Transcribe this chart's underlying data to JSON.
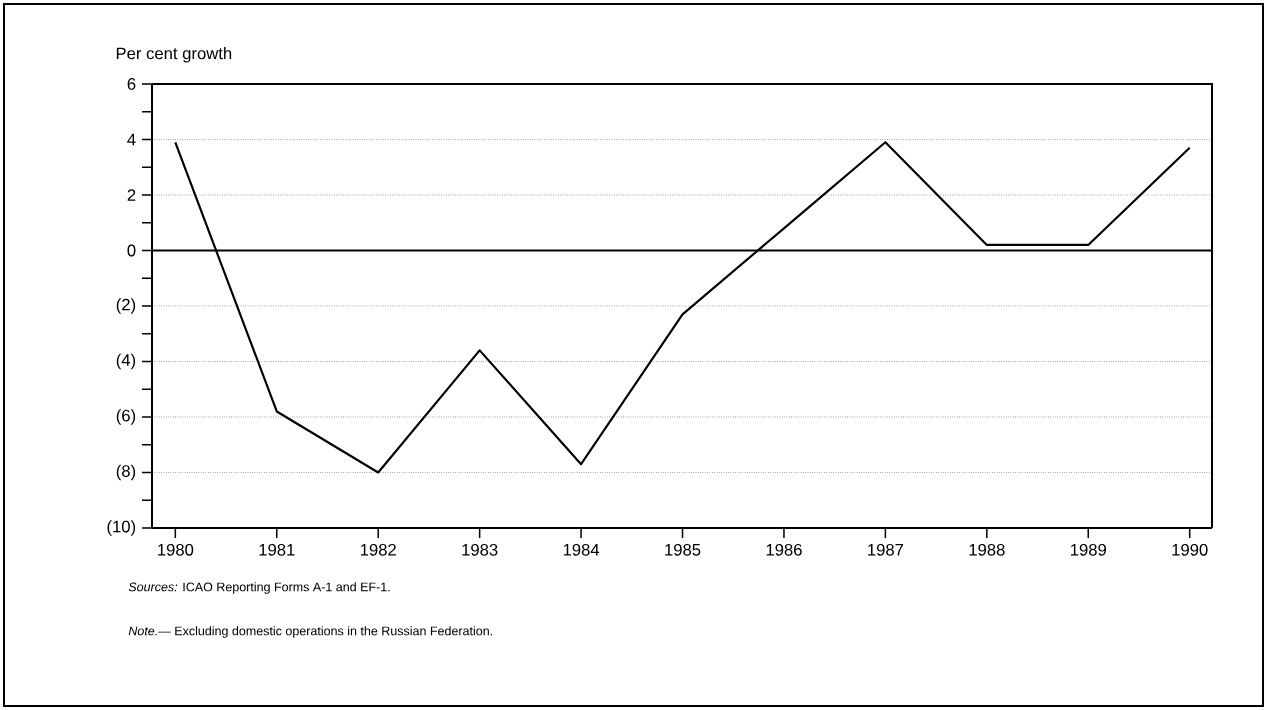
{
  "chart_data": {
    "type": "line",
    "ylabel": "Per cent growth",
    "categories": [
      "1980",
      "1981",
      "1982",
      "1983",
      "1984",
      "1985",
      "1986",
      "1987",
      "1988",
      "1989",
      "1990"
    ],
    "series": [
      {
        "color": "#000000",
        "values": [
          3.9,
          -5.8,
          -8.0,
          -3.6,
          -7.7,
          -2.3,
          0.8,
          3.9,
          0.2,
          0.2,
          3.7
        ]
      }
    ],
    "ylim": [
      -10,
      6
    ],
    "yticks": [
      6,
      {
        "value": 5,
        "label": null
      },
      4,
      {
        "value": 3,
        "label": null
      },
      2,
      {
        "value": 1,
        "label": null
      },
      0,
      {
        "value": -1,
        "label": null
      },
      {
        "value": -2,
        "label": "(2)"
      },
      {
        "value": -3,
        "label": null
      },
      {
        "value": -4,
        "label": "(4)"
      },
      {
        "value": -5,
        "label": null
      },
      {
        "value": -6,
        "label": "(6)"
      },
      {
        "value": -7,
        "label": null
      },
      {
        "value": -8,
        "label": "(8)"
      },
      {
        "value": -9,
        "label": null
      },
      {
        "value": -10,
        "label": "(10)"
      }
    ],
    "grid": "y",
    "ref_lines": [
      {
        "axis": "y",
        "value": 0,
        "line_style": "solid"
      }
    ],
    "annotations": [
      "*Sources:* ICAO Reporting Forms A-1 and EF-1.",
      "*Note.—* Excluding domestic operations in the Russian Federation."
    ]
  }
}
